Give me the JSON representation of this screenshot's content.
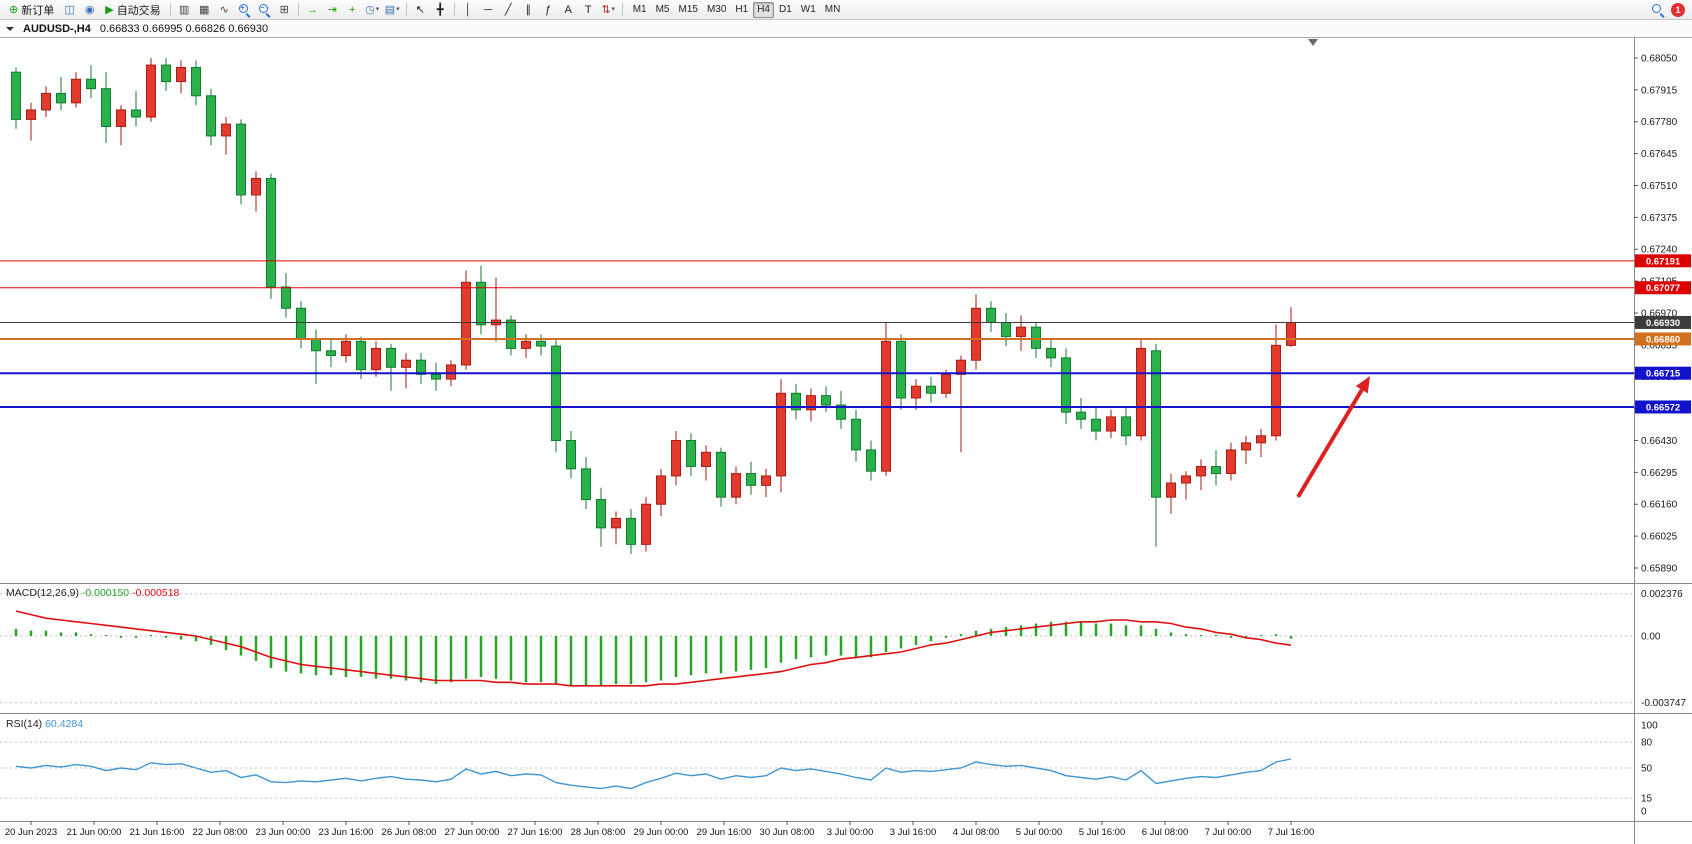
{
  "toolbar": {
    "timeframes": [
      "M1",
      "M5",
      "M15",
      "M30",
      "H1",
      "H4",
      "D1",
      "W1",
      "MN"
    ],
    "active_timeframe": "H4",
    "badge_count": "1",
    "items": [
      {
        "type": "button",
        "name": "new-order-button",
        "glyph": "⊕",
        "glyph_color": "#1a9c1a",
        "label": "新订单"
      },
      {
        "type": "icon",
        "name": "new-chart-icon",
        "glyph": "◫",
        "glyph_color": "#3b6fb5"
      },
      {
        "type": "icon",
        "name": "profiles-icon",
        "glyph": "◉",
        "glyph_color": "#3b6fb5"
      },
      {
        "type": "button",
        "name": "autotrading-button",
        "glyph": "▶",
        "glyph_color": "#1a9c1a",
        "label": "自动交易"
      },
      {
        "type": "sep"
      },
      {
        "type": "icon",
        "name": "bar-chart-icon",
        "glyph": "▥",
        "glyph_color": "#444"
      },
      {
        "type": "icon",
        "name": "candlestick-chart-icon",
        "glyph": "▦",
        "glyph_color": "#444"
      },
      {
        "type": "icon",
        "name": "line-chart-icon",
        "glyph": "∿",
        "glyph_color": "#444"
      },
      {
        "type": "mag",
        "name": "zoom-in-icon",
        "sign": "+"
      },
      {
        "type": "mag",
        "name": "zoom-out-icon",
        "sign": "−"
      },
      {
        "type": "icon",
        "name": "tile-windows-icon",
        "glyph": "⊞",
        "glyph_color": "#444"
      },
      {
        "type": "sep"
      },
      {
        "type": "icon",
        "name": "auto-scroll-icon",
        "glyph": "→",
        "glyph_color": "#1a9c1a"
      },
      {
        "type": "icon",
        "name": "chart-shift-icon",
        "glyph": "⇥",
        "glyph_color": "#1a9c1a"
      },
      {
        "type": "icon",
        "name": "indicators-icon",
        "glyph": "+",
        "glyph_color": "#1a9c1a"
      },
      {
        "type": "icon",
        "name": "periods-icon",
        "glyph": "◷",
        "glyph_color": "#3b6fb5",
        "caret": true
      },
      {
        "type": "icon",
        "name": "templates-icon",
        "glyph": "▤",
        "glyph_color": "#3b6fb5",
        "caret": true
      },
      {
        "type": "sep"
      },
      {
        "type": "icon",
        "name": "cursor-icon",
        "glyph": "↖",
        "glyph_color": "#222"
      },
      {
        "type": "icon",
        "name": "crosshair-icon",
        "glyph": "╋",
        "glyph_color": "#222"
      },
      {
        "type": "sep"
      },
      {
        "type": "icon",
        "name": "vertical-line-icon",
        "glyph": "│",
        "glyph_color": "#222"
      },
      {
        "type": "icon",
        "name": "horizontal-line-icon",
        "glyph": "─",
        "glyph_color": "#222"
      },
      {
        "type": "icon",
        "name": "trendline-icon",
        "glyph": "╱",
        "glyph_color": "#222"
      },
      {
        "type": "icon",
        "name": "channel-icon",
        "glyph": "∥",
        "glyph_color": "#222"
      },
      {
        "type": "icon",
        "name": "fibonacci-icon",
        "glyph": "ƒ",
        "glyph_color": "#222"
      },
      {
        "type": "icon",
        "name": "text-icon",
        "glyph": "A",
        "glyph_color": "#222"
      },
      {
        "type": "icon",
        "name": "text-label-icon",
        "glyph": "T",
        "glyph_color": "#222"
      },
      {
        "type": "icon",
        "name": "arrows-icon",
        "glyph": "⇅",
        "glyph_color": "#b03030",
        "caret": true
      },
      {
        "type": "sep"
      },
      {
        "type": "tf-group",
        "name": "timeframe-buttons"
      },
      {
        "type": "spacer"
      },
      {
        "type": "mag",
        "name": "search-icon",
        "sign": ""
      },
      {
        "type": "badge",
        "name": "notification-badge"
      }
    ]
  },
  "window": {
    "symbol_title": "AUDUSD-,H4",
    "ohlc": "0.66833  0.66995  0.66826  0.66930"
  },
  "chart_data": {
    "type": "candlestick",
    "symbol": "AUDUSD-",
    "period": "H4",
    "last_bar": {
      "open": 0.66833,
      "high": 0.66995,
      "low": 0.66826,
      "close": 0.6693
    },
    "up_color": "#e23a2e",
    "down_color": "#2bb14a",
    "y_axis_labels": [
      "0.68050",
      "0.67915",
      "0.67780",
      "0.67645",
      "0.67510",
      "0.67375",
      "0.67240",
      "0.67105",
      "0.66970",
      "0.66835",
      "0.66700",
      "0.66565",
      "0.66430",
      "0.66295",
      "0.66160",
      "0.66025",
      "0.65890"
    ],
    "x_axis_labels": [
      "20 Jun 2023",
      "21 Jun 00:00",
      "21 Jun 16:00",
      "22 Jun 08:00",
      "23 Jun 00:00",
      "23 Jun 16:00",
      "26 Jun 08:00",
      "27 Jun 00:00",
      "27 Jun 16:00",
      "28 Jun 08:00",
      "29 Jun 00:00",
      "29 Jun 16:00",
      "30 Jun 08:00",
      "3 Jul 00:00",
      "3 Jul 16:00",
      "4 Jul 08:00",
      "5 Jul 00:00",
      "5 Jul 16:00",
      "6 Jul 08:00",
      "7 Jul 00:00",
      "7 Jul 16:00"
    ],
    "hlines": [
      {
        "price": 0.67191,
        "label": "0.67191",
        "color": "#dd0000",
        "width": 1
      },
      {
        "price": 0.67077,
        "label": "0.67077",
        "color": "#dd0000",
        "width": 1
      },
      {
        "price": 0.6693,
        "label": "0.66930",
        "color": "#3c3c3c",
        "width": 1
      },
      {
        "price": 0.6686,
        "label": "0.66860",
        "color": "#d2701e",
        "width": 2
      },
      {
        "price": 0.66715,
        "label": "0.66715",
        "color": "#1212cc",
        "width": 2
      },
      {
        "price": 0.66572,
        "label": "0.66572",
        "color": "#1212cc",
        "width": 2
      }
    ],
    "arrow_annotation": {
      "color": "#dd2020",
      "from": [
        1298,
        459
      ],
      "to": [
        1370,
        338
      ]
    },
    "candles": [
      [
        0.6799,
        0.6801,
        0.6775,
        0.6779
      ],
      [
        0.6779,
        0.6786,
        0.677,
        0.6783
      ],
      [
        0.6783,
        0.6793,
        0.678,
        0.679
      ],
      [
        0.679,
        0.6797,
        0.6783,
        0.6786
      ],
      [
        0.6786,
        0.6799,
        0.6784,
        0.6796
      ],
      [
        0.6796,
        0.6802,
        0.6788,
        0.6792
      ],
      [
        0.6792,
        0.6799,
        0.6769,
        0.6776
      ],
      [
        0.6776,
        0.6785,
        0.6768,
        0.6783
      ],
      [
        0.6783,
        0.6791,
        0.6776,
        0.678
      ],
      [
        0.678,
        0.6805,
        0.6778,
        0.6802
      ],
      [
        0.6802,
        0.6805,
        0.6791,
        0.6795
      ],
      [
        0.6795,
        0.6804,
        0.679,
        0.6801
      ],
      [
        0.6801,
        0.6804,
        0.6785,
        0.6789
      ],
      [
        0.6789,
        0.6792,
        0.6768,
        0.6772
      ],
      [
        0.6772,
        0.678,
        0.6764,
        0.6777
      ],
      [
        0.6777,
        0.6779,
        0.6743,
        0.6747
      ],
      [
        0.6747,
        0.6757,
        0.674,
        0.6754
      ],
      [
        0.6754,
        0.6756,
        0.6703,
        0.6708
      ],
      [
        0.6708,
        0.6714,
        0.6695,
        0.6699
      ],
      [
        0.6699,
        0.6702,
        0.6682,
        0.6686
      ],
      [
        0.6686,
        0.669,
        0.6667,
        0.6681
      ],
      [
        0.6681,
        0.6686,
        0.6674,
        0.6679
      ],
      [
        0.6679,
        0.6688,
        0.6676,
        0.6685
      ],
      [
        0.6685,
        0.6687,
        0.6669,
        0.6673
      ],
      [
        0.6673,
        0.6685,
        0.667,
        0.6682
      ],
      [
        0.6682,
        0.6684,
        0.6664,
        0.6674
      ],
      [
        0.6674,
        0.668,
        0.6665,
        0.6677
      ],
      [
        0.6677,
        0.668,
        0.6667,
        0.6671
      ],
      [
        0.6671,
        0.6676,
        0.6664,
        0.6669
      ],
      [
        0.6669,
        0.6677,
        0.6666,
        0.6675
      ],
      [
        0.6675,
        0.6715,
        0.6673,
        0.671
      ],
      [
        0.671,
        0.6717,
        0.6688,
        0.6692
      ],
      [
        0.6692,
        0.6712,
        0.6685,
        0.6694
      ],
      [
        0.6694,
        0.6696,
        0.6679,
        0.6682
      ],
      [
        0.6682,
        0.6688,
        0.6678,
        0.6685
      ],
      [
        0.6685,
        0.6688,
        0.6679,
        0.6683
      ],
      [
        0.6683,
        0.6686,
        0.6638,
        0.6643
      ],
      [
        0.6643,
        0.6647,
        0.6627,
        0.6631
      ],
      [
        0.6631,
        0.6636,
        0.6614,
        0.6618
      ],
      [
        0.6618,
        0.6623,
        0.6598,
        0.6606
      ],
      [
        0.6606,
        0.6613,
        0.6599,
        0.661
      ],
      [
        0.661,
        0.6614,
        0.6595,
        0.6599
      ],
      [
        0.6599,
        0.6619,
        0.6596,
        0.6616
      ],
      [
        0.6616,
        0.6631,
        0.6611,
        0.6628
      ],
      [
        0.6628,
        0.6647,
        0.6624,
        0.6643
      ],
      [
        0.6643,
        0.6646,
        0.6628,
        0.6632
      ],
      [
        0.6632,
        0.6641,
        0.6626,
        0.6638
      ],
      [
        0.6638,
        0.664,
        0.6615,
        0.6619
      ],
      [
        0.6619,
        0.6632,
        0.6616,
        0.6629
      ],
      [
        0.6629,
        0.6634,
        0.662,
        0.6624
      ],
      [
        0.6624,
        0.6631,
        0.6619,
        0.6628
      ],
      [
        0.6628,
        0.6669,
        0.6621,
        0.6663
      ],
      [
        0.6663,
        0.6667,
        0.6652,
        0.6656
      ],
      [
        0.6656,
        0.6665,
        0.6651,
        0.6662
      ],
      [
        0.6662,
        0.6666,
        0.6655,
        0.6658
      ],
      [
        0.6658,
        0.6664,
        0.6648,
        0.6652
      ],
      [
        0.6652,
        0.6656,
        0.6634,
        0.6639
      ],
      [
        0.6639,
        0.6643,
        0.6626,
        0.663
      ],
      [
        0.663,
        0.6693,
        0.6628,
        0.6685
      ],
      [
        0.6685,
        0.6688,
        0.6656,
        0.6661
      ],
      [
        0.6661,
        0.6669,
        0.6656,
        0.6666
      ],
      [
        0.6666,
        0.667,
        0.6659,
        0.6663
      ],
      [
        0.6663,
        0.6673,
        0.6661,
        0.6671
      ],
      [
        0.6671,
        0.6679,
        0.6638,
        0.6677
      ],
      [
        0.6677,
        0.6705,
        0.6673,
        0.6699
      ],
      [
        0.6699,
        0.6702,
        0.6689,
        0.6693
      ],
      [
        0.6693,
        0.6697,
        0.6683,
        0.6687
      ],
      [
        0.6687,
        0.6696,
        0.6681,
        0.6691
      ],
      [
        0.6691,
        0.6693,
        0.6678,
        0.6682
      ],
      [
        0.6682,
        0.6686,
        0.6674,
        0.6678
      ],
      [
        0.6678,
        0.6682,
        0.665,
        0.6655
      ],
      [
        0.6655,
        0.6661,
        0.6648,
        0.6652
      ],
      [
        0.6652,
        0.6657,
        0.6643,
        0.6647
      ],
      [
        0.6647,
        0.6656,
        0.6644,
        0.6653
      ],
      [
        0.6653,
        0.6657,
        0.6641,
        0.6645
      ],
      [
        0.6645,
        0.6686,
        0.6643,
        0.6682
      ],
      [
        0.6681,
        0.6684,
        0.6598,
        0.6619
      ],
      [
        0.6619,
        0.6629,
        0.6612,
        0.6625
      ],
      [
        0.6625,
        0.663,
        0.6618,
        0.6628
      ],
      [
        0.6628,
        0.6635,
        0.6622,
        0.6632
      ],
      [
        0.6632,
        0.6639,
        0.6624,
        0.6629
      ],
      [
        0.6629,
        0.6642,
        0.6626,
        0.6639
      ],
      [
        0.6639,
        0.6645,
        0.6633,
        0.6642
      ],
      [
        0.6642,
        0.6648,
        0.6636,
        0.6645
      ],
      [
        0.6645,
        0.6692,
        0.6643,
        0.66833
      ],
      [
        0.66833,
        0.66995,
        0.66826,
        0.6693
      ]
    ],
    "macd": {
      "name": "MACD(12,26,9)",
      "value_main": "-0.000150",
      "value_signal": "-0.000518",
      "scale": [
        "0.002376",
        "0.00",
        "-0.003747"
      ],
      "hist_color": "#28a428",
      "signal_color": "#e01010",
      "histogram": [
        0.0004,
        0.0003,
        0.0003,
        0.0002,
        0.0002,
        0.0001,
        0.0,
        -0.0001,
        -0.0001,
        0.0,
        -0.0001,
        -0.0002,
        -0.0003,
        -0.0005,
        -0.0008,
        -0.0011,
        -0.0014,
        -0.0018,
        -0.002,
        -0.0021,
        -0.0022,
        -0.0022,
        -0.0023,
        -0.0023,
        -0.0024,
        -0.0024,
        -0.0025,
        -0.0026,
        -0.0027,
        -0.0026,
        -0.0024,
        -0.0023,
        -0.0024,
        -0.0025,
        -0.0026,
        -0.0026,
        -0.0027,
        -0.0028,
        -0.0028,
        -0.0028,
        -0.0027,
        -0.0027,
        -0.0026,
        -0.0025,
        -0.0023,
        -0.0022,
        -0.0021,
        -0.0021,
        -0.002,
        -0.0019,
        -0.0018,
        -0.0015,
        -0.0013,
        -0.0012,
        -0.0011,
        -0.0011,
        -0.0012,
        -0.0012,
        -0.0009,
        -0.0007,
        -0.0005,
        -0.0003,
        -0.0001,
        0.0001,
        0.0003,
        0.0004,
        0.0005,
        0.0006,
        0.0007,
        0.0008,
        0.0008,
        0.0008,
        0.0007,
        0.0007,
        0.0006,
        0.0006,
        0.0004,
        0.0002,
        0.0001,
        0.0,
        0.0,
        -0.0001,
        -0.0001,
        0.0,
        0.0001,
        -0.00015
      ],
      "signal": [
        0.0014,
        0.0012,
        0.001,
        0.0009,
        0.0008,
        0.0007,
        0.0006,
        0.0005,
        0.0004,
        0.0003,
        0.0002,
        0.0001,
        0.0,
        -0.0002,
        -0.0004,
        -0.0006,
        -0.0009,
        -0.0012,
        -0.0014,
        -0.0016,
        -0.0017,
        -0.0018,
        -0.0019,
        -0.002,
        -0.0021,
        -0.0022,
        -0.0023,
        -0.0024,
        -0.0025,
        -0.0025,
        -0.0025,
        -0.0025,
        -0.0026,
        -0.0026,
        -0.0027,
        -0.0027,
        -0.0027,
        -0.0028,
        -0.0028,
        -0.0028,
        -0.0028,
        -0.0028,
        -0.0028,
        -0.0027,
        -0.0027,
        -0.0026,
        -0.0025,
        -0.0024,
        -0.0023,
        -0.0022,
        -0.0021,
        -0.002,
        -0.0018,
        -0.0016,
        -0.0015,
        -0.0013,
        -0.0012,
        -0.0011,
        -0.001,
        -0.0009,
        -0.0007,
        -0.0005,
        -0.0004,
        -0.0002,
        0.0,
        0.0002,
        0.0003,
        0.0004,
        0.0005,
        0.0006,
        0.0007,
        0.0008,
        0.0008,
        0.0009,
        0.0009,
        0.0008,
        0.0008,
        0.0007,
        0.0005,
        0.0004,
        0.0002,
        0.0001,
        -0.0001,
        -0.0002,
        -0.0004,
        -0.000518
      ]
    },
    "rsi": {
      "name": "RSI(14)",
      "value": "60.4284",
      "scale": [
        "100",
        "80",
        "50",
        "15",
        "0"
      ],
      "levels": [
        80,
        50,
        15
      ],
      "color": "#3f96d2",
      "values": [
        52,
        50,
        53,
        51,
        54,
        52,
        47,
        50,
        48,
        56,
        54,
        55,
        50,
        45,
        47,
        39,
        42,
        34,
        33,
        35,
        34,
        36,
        38,
        35,
        38,
        40,
        37,
        36,
        34,
        37,
        49,
        43,
        46,
        41,
        43,
        42,
        33,
        30,
        28,
        26,
        29,
        26,
        33,
        38,
        44,
        41,
        43,
        37,
        41,
        39,
        41,
        50,
        47,
        49,
        46,
        43,
        39,
        36,
        50,
        45,
        47,
        46,
        48,
        50,
        57,
        54,
        52,
        53,
        50,
        47,
        41,
        39,
        37,
        40,
        36,
        47,
        32,
        35,
        38,
        40,
        39,
        42,
        45,
        47,
        57,
        60.4284
      ]
    }
  }
}
